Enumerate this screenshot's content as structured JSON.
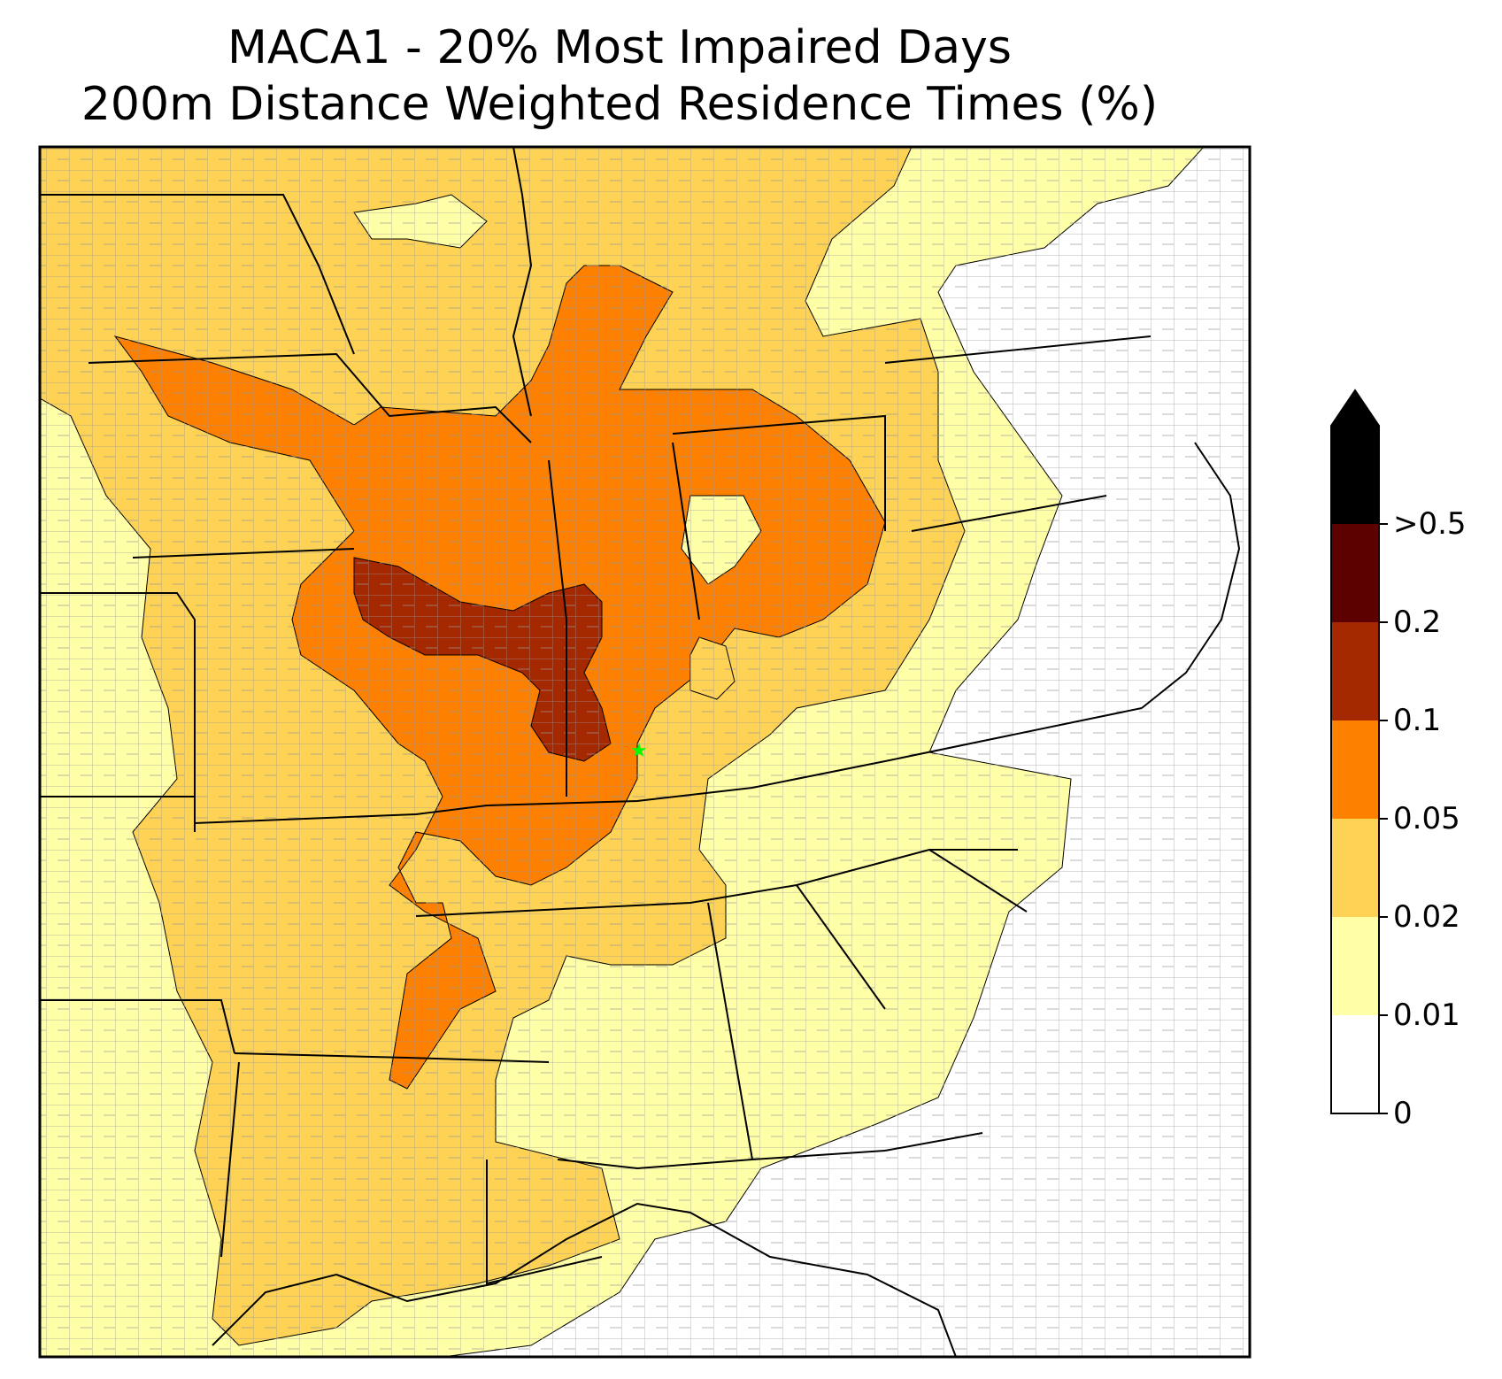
{
  "title": {
    "line1": "MACA1 - 20% Most Impaired Days",
    "line2": "200m Distance Weighted Residence Times (%)"
  },
  "colorbar": {
    "bins": [
      {
        "from": "0",
        "to": "0.01",
        "color": "#ffffff"
      },
      {
        "from": "0.01",
        "to": "0.02",
        "color": "#ffffa8"
      },
      {
        "from": "0.02",
        "to": "0.05",
        "color": "#fed355"
      },
      {
        "from": "0.05",
        "to": "0.1",
        "color": "#fe8000"
      },
      {
        "from": "0.1",
        "to": "0.2",
        "color": "#a42800"
      },
      {
        "from": "0.2",
        "to": ">0.5",
        "color": "#5c0000"
      },
      {
        "from": ">0.5",
        "to": "",
        "color": "#000000"
      }
    ],
    "tick_labels": [
      "0",
      "0.01",
      "0.02",
      "0.05",
      "0.1",
      "0.2",
      ">0.5"
    ],
    "extend": "max"
  },
  "map": {
    "receptor_marker": {
      "symbol": "star",
      "color": "#00ff00",
      "name": "MACA1"
    },
    "boundary_color": "#000000",
    "county_color": "#999999"
  }
}
